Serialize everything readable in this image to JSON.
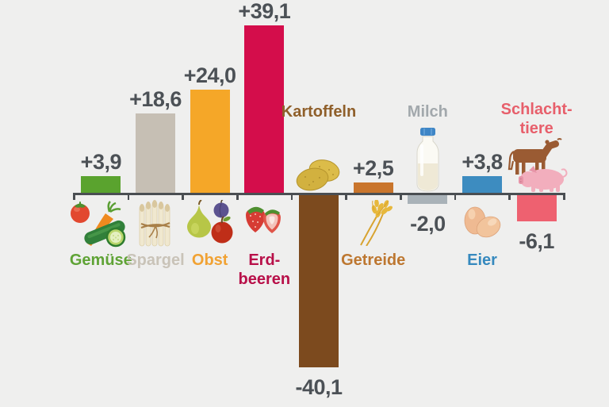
{
  "colors": {
    "background": "#efefee",
    "axis": "#4a4e52",
    "value_text": "#4c5156"
  },
  "chart_data": {
    "type": "bar",
    "title": "",
    "categories": [
      "Gemüse",
      "Spargel",
      "Obst",
      "Erdbeeren",
      "Kartoffeln",
      "Getreide",
      "Milch",
      "Eier",
      "Schlachttiere"
    ],
    "values": [
      3.9,
      18.6,
      24.0,
      39.1,
      -40.1,
      2.5,
      -2.0,
      3.8,
      -6.1
    ],
    "value_labels": [
      "+3,9",
      "+18,6",
      "+24,0",
      "+39,1",
      "-40,1",
      "+2,5",
      "-2,0",
      "+3,8",
      "-6,1"
    ],
    "label_lines": [
      [
        "Gemüse"
      ],
      [
        "Spargel"
      ],
      [
        "Obst"
      ],
      [
        "Erd-",
        "beeren"
      ],
      [
        "Kartoffeln"
      ],
      [
        "Getreide"
      ],
      [
        "Milch"
      ],
      [
        "Eier"
      ],
      [
        "Schlacht-",
        "tiere"
      ]
    ],
    "keys": [
      "gemuese",
      "spargel",
      "obst",
      "erdbeeren",
      "kartoffeln",
      "getreide",
      "milch",
      "eier",
      "schlachttiere"
    ],
    "bar_colors": [
      "#5aa32e",
      "#c6bfb4",
      "#f5a728",
      "#d40d4b",
      "#7c4a1e",
      "#c9752c",
      "#a9b2b8",
      "#3d8cc0",
      "#ee6170"
    ],
    "label_colors": [
      "#5fa335",
      "#c9c3b8",
      "#f1a233",
      "#b81049",
      "#8f5f2a",
      "#bd7730",
      "#a2a8ac",
      "#3689be",
      "#e75f6b"
    ],
    "icons": [
      [
        "tomato-icon",
        "carrot-icon",
        "cucumber-icon"
      ],
      [
        "asparagus-bundle-icon"
      ],
      [
        "pear-icon",
        "plum-icon",
        "apple-icon"
      ],
      [
        "strawberries-icon"
      ],
      [
        "potatoes-icon"
      ],
      [
        "wheat-icon"
      ],
      [
        "milk-bottle-icon"
      ],
      [
        "eggs-icon"
      ],
      [
        "cow-icon",
        "pig-icon"
      ]
    ],
    "axis_range_hint": [
      -40.1,
      39.1
    ],
    "grid": false,
    "legend": false
  }
}
